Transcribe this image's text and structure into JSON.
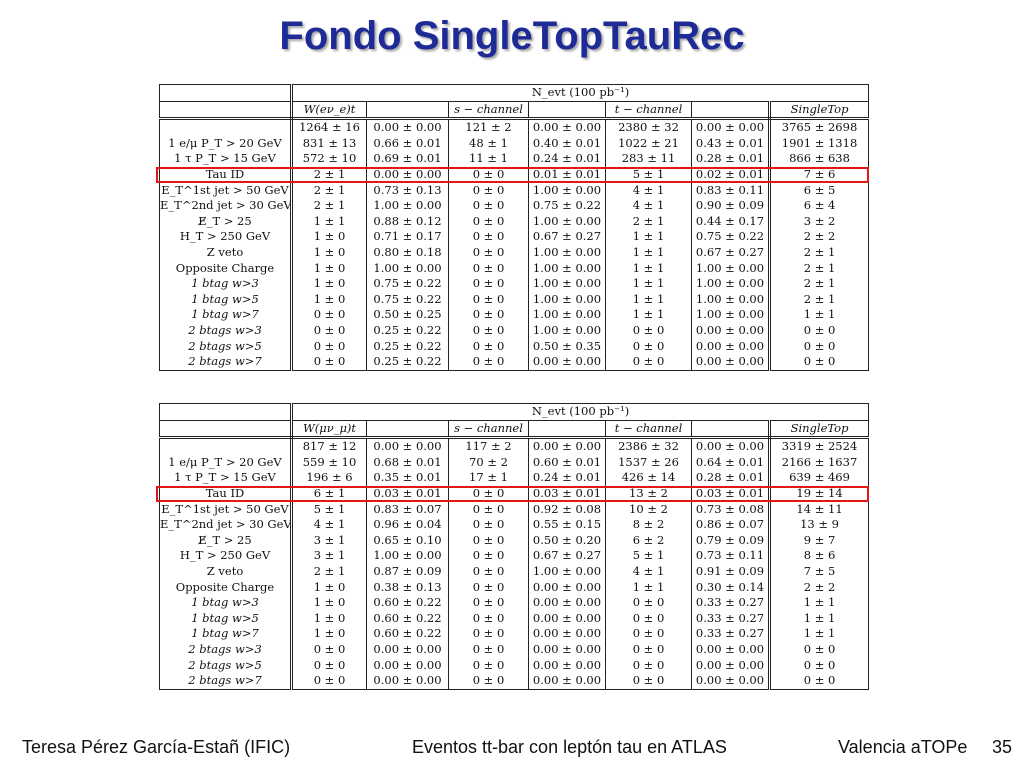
{
  "title": "Fondo SingleTopTauRec",
  "table1": {
    "top_header": "N_evt (100 pb⁻¹)",
    "columns": [
      "W(eν_e)t",
      "",
      "s − channel",
      "",
      "t − channel",
      "",
      "SingleTop"
    ],
    "rows": [
      {
        "label": "",
        "cells": [
          "1264 ± 16",
          "0.00 ± 0.00",
          "121 ± 2",
          "0.00 ± 0.00",
          "2380 ± 32",
          "0.00 ± 0.00",
          "3765 ± 2698"
        ]
      },
      {
        "label": "1 e/μ P_T > 20 GeV",
        "cells": [
          "831 ± 13",
          "0.66 ± 0.01",
          "48 ± 1",
          "0.40 ± 0.01",
          "1022 ± 21",
          "0.43 ± 0.01",
          "1901 ± 1318"
        ]
      },
      {
        "label": "1 τ P_T > 15 GeV",
        "cells": [
          "572 ± 10",
          "0.69 ± 0.01",
          "11 ± 1",
          "0.24 ± 0.01",
          "283 ± 11",
          "0.28 ± 0.01",
          "866 ± 638"
        ]
      },
      {
        "label": "Tau ID",
        "cells": [
          "2 ± 1",
          "0.00 ± 0.00",
          "0 ± 0",
          "0.01 ± 0.01",
          "5 ± 1",
          "0.02 ± 0.01",
          "7 ± 6"
        ]
      },
      {
        "label": "E_T^1st jet > 50 GeV",
        "cells": [
          "2 ± 1",
          "0.73 ± 0.13",
          "0 ± 0",
          "1.00 ± 0.00",
          "4 ± 1",
          "0.83 ± 0.11",
          "6 ± 5"
        ]
      },
      {
        "label": "E_T^2nd jet > 30 GeV",
        "cells": [
          "2 ± 1",
          "1.00 ± 0.00",
          "0 ± 0",
          "0.75 ± 0.22",
          "4 ± 1",
          "0.90 ± 0.09",
          "6 ± 4"
        ]
      },
      {
        "label": "E̸_T > 25",
        "cells": [
          "1 ± 1",
          "0.88 ± 0.12",
          "0 ± 0",
          "1.00 ± 0.00",
          "2 ± 1",
          "0.44 ± 0.17",
          "3 ± 2"
        ]
      },
      {
        "label": "H_T > 250 GeV",
        "cells": [
          "1 ± 0",
          "0.71 ± 0.17",
          "0 ± 0",
          "0.67 ± 0.27",
          "1 ± 1",
          "0.75 ± 0.22",
          "2 ± 2"
        ]
      },
      {
        "label": "Z veto",
        "cells": [
          "1 ± 0",
          "0.80 ± 0.18",
          "0 ± 0",
          "1.00 ± 0.00",
          "1 ± 1",
          "0.67 ± 0.27",
          "2 ± 1"
        ]
      },
      {
        "label": "Opposite Charge",
        "cells": [
          "1 ± 0",
          "1.00 ± 0.00",
          "0 ± 0",
          "1.00 ± 0.00",
          "1 ± 1",
          "1.00 ± 0.00",
          "2 ± 1"
        ]
      },
      {
        "label": "1 btag w>3",
        "italic": true,
        "cells": [
          "1 ± 0",
          "0.75 ± 0.22",
          "0 ± 0",
          "1.00 ± 0.00",
          "1 ± 1",
          "1.00 ± 0.00",
          "2 ± 1"
        ]
      },
      {
        "label": "1 btag w>5",
        "italic": true,
        "cells": [
          "1 ± 0",
          "0.75 ± 0.22",
          "0 ± 0",
          "1.00 ± 0.00",
          "1 ± 1",
          "1.00 ± 0.00",
          "2 ± 1"
        ]
      },
      {
        "label": "1 btag w>7",
        "italic": true,
        "cells": [
          "0 ± 0",
          "0.50 ± 0.25",
          "0 ± 0",
          "1.00 ± 0.00",
          "1 ± 1",
          "1.00 ± 0.00",
          "1 ± 1"
        ]
      },
      {
        "label": "2 btags w>3",
        "italic": true,
        "cells": [
          "0 ± 0",
          "0.25 ± 0.22",
          "0 ± 0",
          "1.00 ± 0.00",
          "0 ± 0",
          "0.00 ± 0.00",
          "0 ± 0"
        ]
      },
      {
        "label": "2 btags w>5",
        "italic": true,
        "cells": [
          "0 ± 0",
          "0.25 ± 0.22",
          "0 ± 0",
          "0.50 ± 0.35",
          "0 ± 0",
          "0.00 ± 0.00",
          "0 ± 0"
        ]
      },
      {
        "label": "2 btags w>7",
        "italic": true,
        "cells": [
          "0 ± 0",
          "0.25 ± 0.22",
          "0 ± 0",
          "0.00 ± 0.00",
          "0 ± 0",
          "0.00 ± 0.00",
          "0 ± 0"
        ]
      }
    ]
  },
  "table2": {
    "top_header": "N_evt (100 pb⁻¹)",
    "columns": [
      "W(μν_μ)t",
      "",
      "s − channel",
      "",
      "t − channel",
      "",
      "SingleTop"
    ],
    "rows": [
      {
        "label": "",
        "cells": [
          "817 ± 12",
          "0.00 ± 0.00",
          "117 ± 2",
          "0.00 ± 0.00",
          "2386 ± 32",
          "0.00 ± 0.00",
          "3319 ± 2524"
        ]
      },
      {
        "label": "1 e/μ P_T > 20 GeV",
        "cells": [
          "559 ± 10",
          "0.68 ± 0.01",
          "70 ± 2",
          "0.60 ± 0.01",
          "1537 ± 26",
          "0.64 ± 0.01",
          "2166 ± 1637"
        ]
      },
      {
        "label": "1 τ P_T > 15 GeV",
        "cells": [
          "196 ± 6",
          "0.35 ± 0.01",
          "17 ± 1",
          "0.24 ± 0.01",
          "426 ± 14",
          "0.28 ± 0.01",
          "639 ± 469"
        ]
      },
      {
        "label": "Tau ID",
        "cells": [
          "6 ± 1",
          "0.03 ± 0.01",
          "0 ± 0",
          "0.03 ± 0.01",
          "13 ± 2",
          "0.03 ± 0.01",
          "19 ± 14"
        ]
      },
      {
        "label": "E_T^1st jet > 50 GeV",
        "cells": [
          "5 ± 1",
          "0.83 ± 0.07",
          "0 ± 0",
          "0.92 ± 0.08",
          "10 ± 2",
          "0.73 ± 0.08",
          "14 ± 11"
        ]
      },
      {
        "label": "E_T^2nd jet > 30 GeV",
        "cells": [
          "4 ± 1",
          "0.96 ± 0.04",
          "0 ± 0",
          "0.55 ± 0.15",
          "8 ± 2",
          "0.86 ± 0.07",
          "13 ± 9"
        ]
      },
      {
        "label": "E̸_T > 25",
        "cells": [
          "3 ± 1",
          "0.65 ± 0.10",
          "0 ± 0",
          "0.50 ± 0.20",
          "6 ± 2",
          "0.79 ± 0.09",
          "9 ± 7"
        ]
      },
      {
        "label": "H_T > 250 GeV",
        "cells": [
          "3 ± 1",
          "1.00 ± 0.00",
          "0 ± 0",
          "0.67 ± 0.27",
          "5 ± 1",
          "0.73 ± 0.11",
          "8 ± 6"
        ]
      },
      {
        "label": "Z veto",
        "cells": [
          "2 ± 1",
          "0.87 ± 0.09",
          "0 ± 0",
          "1.00 ± 0.00",
          "4 ± 1",
          "0.91 ± 0.09",
          "7 ± 5"
        ]
      },
      {
        "label": "Opposite Charge",
        "cells": [
          "1 ± 0",
          "0.38 ± 0.13",
          "0 ± 0",
          "0.00 ± 0.00",
          "1 ± 1",
          "0.30 ± 0.14",
          "2 ± 2"
        ]
      },
      {
        "label": "1 btag w>3",
        "italic": true,
        "cells": [
          "1 ± 0",
          "0.60 ± 0.22",
          "0 ± 0",
          "0.00 ± 0.00",
          "0 ± 0",
          "0.33 ± 0.27",
          "1 ± 1"
        ]
      },
      {
        "label": "1 btag w>5",
        "italic": true,
        "cells": [
          "1 ± 0",
          "0.60 ± 0.22",
          "0 ± 0",
          "0.00 ± 0.00",
          "0 ± 0",
          "0.33 ± 0.27",
          "1 ± 1"
        ]
      },
      {
        "label": "1 btag w>7",
        "italic": true,
        "cells": [
          "1 ± 0",
          "0.60 ± 0.22",
          "0 ± 0",
          "0.00 ± 0.00",
          "0 ± 0",
          "0.33 ± 0.27",
          "1 ± 1"
        ]
      },
      {
        "label": "2 btags w>3",
        "italic": true,
        "cells": [
          "0 ± 0",
          "0.00 ± 0.00",
          "0 ± 0",
          "0.00 ± 0.00",
          "0 ± 0",
          "0.00 ± 0.00",
          "0 ± 0"
        ]
      },
      {
        "label": "2 btags w>5",
        "italic": true,
        "cells": [
          "0 ± 0",
          "0.00 ± 0.00",
          "0 ± 0",
          "0.00 ± 0.00",
          "0 ± 0",
          "0.00 ± 0.00",
          "0 ± 0"
        ]
      },
      {
        "label": "2 btags w>7",
        "italic": true,
        "cells": [
          "0 ± 0",
          "0.00 ± 0.00",
          "0 ± 0",
          "0.00 ± 0.00",
          "0 ± 0",
          "0.00 ± 0.00",
          "0 ± 0"
        ]
      }
    ]
  },
  "highlight_color": "#e01818",
  "title_color": "#1e2a96",
  "footer": {
    "left": "Teresa Pérez García-Estañ (IFIC)",
    "center": "Eventos tt-bar con leptón tau en ATLAS",
    "right": "Valencia aTOPe",
    "page": "35"
  }
}
